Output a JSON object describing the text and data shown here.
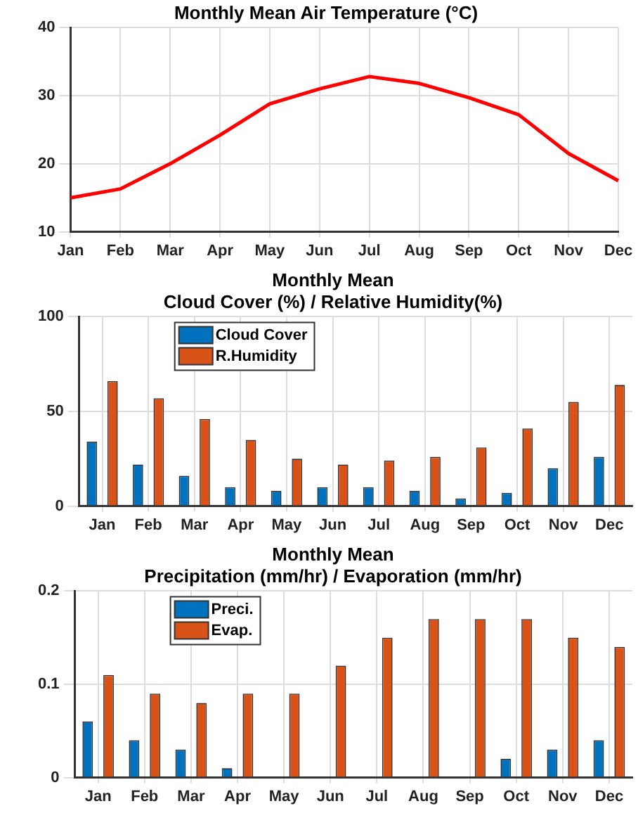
{
  "chart_data": [
    {
      "type": "line",
      "title": "Monthly Mean Air Temperature (°C)",
      "categories": [
        "Jan",
        "Feb",
        "Mar",
        "Apr",
        "May",
        "Jun",
        "Jul",
        "Aug",
        "Sep",
        "Oct",
        "Nov",
        "Dec"
      ],
      "series": [
        {
          "color": "#ff0000",
          "values": [
            15,
            16.3,
            20,
            24.2,
            28.8,
            31,
            32.8,
            31.8,
            29.7,
            27.2,
            21.5,
            17.5
          ]
        }
      ],
      "ylim": [
        10,
        40
      ],
      "yticks": [
        10,
        20,
        30,
        40
      ],
      "grid": true
    },
    {
      "type": "bar",
      "title": "Monthly Mean\nCloud Cover (%) / Relative Humidity(%)",
      "categories": [
        "Jan",
        "Feb",
        "Mar",
        "Apr",
        "May",
        "Jun",
        "Jul",
        "Aug",
        "Sep",
        "Oct",
        "Nov",
        "Dec"
      ],
      "series": [
        {
          "name": "Cloud Cover",
          "color": "#0072bd",
          "values": [
            34,
            22,
            16,
            10,
            8,
            10,
            10,
            8,
            4,
            7,
            20,
            26
          ]
        },
        {
          "name": "R.Humidity",
          "color": "#d95319",
          "values": [
            66,
            57,
            46,
            35,
            25,
            22,
            24,
            26,
            31,
            41,
            55,
            64
          ]
        }
      ],
      "ylim": [
        0,
        100
      ],
      "yticks": [
        0,
        50,
        100
      ],
      "grid": true,
      "legend": "top left"
    },
    {
      "type": "bar",
      "title": "Monthly Mean\nPrecipitation (mm/hr) / Evaporation (mm/hr)",
      "categories": [
        "Jan",
        "Feb",
        "Mar",
        "Apr",
        "May",
        "Jun",
        "Jul",
        "Aug",
        "Sep",
        "Oct",
        "Nov",
        "Dec"
      ],
      "series": [
        {
          "name": "Preci.",
          "color": "#0072bd",
          "values": [
            0.06,
            0.04,
            0.03,
            0.01,
            0,
            0,
            0,
            0,
            0,
            0.02,
            0.03,
            0.04
          ]
        },
        {
          "name": "Evap.",
          "color": "#d95319",
          "values": [
            0.11,
            0.09,
            0.08,
            0.09,
            0.09,
            0.12,
            0.15,
            0.17,
            0.17,
            0.17,
            0.15,
            0.14
          ]
        }
      ],
      "ylim": [
        0,
        0.2
      ],
      "yticks": [
        0,
        0.1,
        0.2
      ],
      "grid": true,
      "legend": "top left"
    }
  ]
}
